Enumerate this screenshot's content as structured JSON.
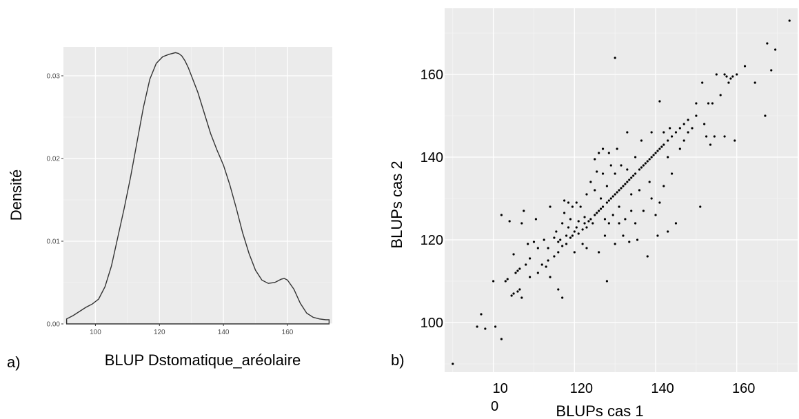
{
  "chart_data": [
    {
      "panel_label": "a)",
      "type": "area",
      "title": "",
      "xlabel": "BLUP Dstomatique_aréolaire",
      "ylabel": "Densité",
      "xlim": [
        90,
        174
      ],
      "ylim": [
        0,
        0.0335
      ],
      "x_ticks": [
        100,
        120,
        140,
        160
      ],
      "y_ticks": [
        0.0,
        0.01,
        0.02,
        0.03
      ],
      "y_tick_labels": [
        "0.00",
        "0.01",
        "0.02",
        "0.03"
      ],
      "grid": true,
      "series": [
        {
          "x": [
            91,
            93,
            95,
            97,
            99,
            101,
            103,
            105,
            107,
            109,
            111,
            113,
            115,
            117,
            119,
            121,
            123,
            125,
            126,
            127,
            128,
            129,
            130,
            132,
            134,
            136,
            138,
            140,
            142,
            144,
            146,
            148,
            150,
            152,
            154,
            156,
            158,
            159,
            160,
            162,
            164,
            166,
            168,
            170,
            172,
            173
          ],
          "y": [
            0.0006,
            0.001,
            0.0015,
            0.002,
            0.0024,
            0.003,
            0.0045,
            0.007,
            0.0105,
            0.014,
            0.0178,
            0.022,
            0.0262,
            0.0296,
            0.0315,
            0.0323,
            0.0326,
            0.0328,
            0.0327,
            0.0324,
            0.0318,
            0.031,
            0.03,
            0.028,
            0.0255,
            0.023,
            0.021,
            0.0192,
            0.0168,
            0.014,
            0.011,
            0.0085,
            0.0065,
            0.0053,
            0.0049,
            0.005,
            0.0054,
            0.0055,
            0.0053,
            0.0042,
            0.0025,
            0.0013,
            0.0008,
            0.0006,
            0.0005,
            0.0005
          ]
        }
      ]
    },
    {
      "panel_label": "b)",
      "type": "scatter",
      "title": "",
      "xlabel": "BLUPs cas 1",
      "ylabel": "BLUPs cas 2",
      "xlim": [
        88,
        175
      ],
      "ylim": [
        88,
        176
      ],
      "x_ticks": [
        100,
        120,
        140,
        160
      ],
      "x_tick_labels": [
        "10\n0",
        "120",
        "140",
        "160"
      ],
      "y_ticks": [
        100,
        120,
        140,
        160
      ],
      "y_tick_labels": [
        "100",
        "120",
        "140",
        "160"
      ],
      "grid": true,
      "series": [
        {
          "points": [
            [
              90,
              90
            ],
            [
              96,
              99
            ],
            [
              97,
              102
            ],
            [
              98,
              98.5
            ],
            [
              100,
              110
            ],
            [
              100.5,
              99
            ],
            [
              102,
              96
            ],
            [
              102,
              126
            ],
            [
              103,
              110
            ],
            [
              103.5,
              110.5
            ],
            [
              104,
              124.5
            ],
            [
              104.5,
              106.5
            ],
            [
              105,
              107
            ],
            [
              105.5,
              112
            ],
            [
              105,
              116.5
            ],
            [
              106,
              107.5
            ],
            [
              106,
              112.5
            ],
            [
              106.5,
              108
            ],
            [
              106.5,
              113
            ],
            [
              107,
              106
            ],
            [
              107,
              124
            ],
            [
              107.5,
              127
            ],
            [
              108,
              114
            ],
            [
              108.5,
              119
            ],
            [
              109,
              115.5
            ],
            [
              109,
              111
            ],
            [
              110,
              119.5
            ],
            [
              110.5,
              125
            ],
            [
              111,
              112
            ],
            [
              111,
              118
            ],
            [
              112,
              114
            ],
            [
              112.5,
              120
            ],
            [
              113,
              113.5
            ],
            [
              113.5,
              115
            ],
            [
              113.5,
              118
            ],
            [
              114,
              111
            ],
            [
              114,
              128
            ],
            [
              115,
              116
            ],
            [
              115,
              120.5
            ],
            [
              115.5,
              122
            ],
            [
              116,
              108
            ],
            [
              116,
              117
            ],
            [
              116,
              119.5
            ],
            [
              116.5,
              120
            ],
            [
              117,
              106
            ],
            [
              117,
              118.5
            ],
            [
              117,
              124
            ],
            [
              117.5,
              129.5
            ],
            [
              117.5,
              126.5
            ],
            [
              118,
              119
            ],
            [
              118,
              121
            ],
            [
              118.5,
              129
            ],
            [
              118.5,
              123
            ],
            [
              119,
              120.5
            ],
            [
              119,
              125
            ],
            [
              119.5,
              121
            ],
            [
              119.5,
              128
            ],
            [
              120,
              122
            ],
            [
              120,
              117
            ],
            [
              120.5,
              123
            ],
            [
              120.5,
              129
            ],
            [
              121,
              121.5
            ],
            [
              121,
              124.5
            ],
            [
              121.5,
              128
            ],
            [
              122,
              122.5
            ],
            [
              122,
              119
            ],
            [
              122.5,
              124
            ],
            [
              122.5,
              125.5
            ],
            [
              123,
              123
            ],
            [
              123,
              131
            ],
            [
              123,
              118
            ],
            [
              123.5,
              124.5
            ],
            [
              124,
              125
            ],
            [
              124,
              134
            ],
            [
              124.5,
              124
            ],
            [
              125,
              126
            ],
            [
              125,
              139.5
            ],
            [
              125,
              132
            ],
            [
              125.5,
              136.5
            ],
            [
              125.5,
              126.5
            ],
            [
              126,
              127
            ],
            [
              126,
              117
            ],
            [
              126,
              141
            ],
            [
              126.5,
              127.5
            ],
            [
              126.5,
              130
            ],
            [
              127,
              128
            ],
            [
              127,
              142
            ],
            [
              127,
              136
            ],
            [
              127.5,
              125
            ],
            [
              127.5,
              121
            ],
            [
              128,
              129
            ],
            [
              128,
              133
            ],
            [
              128,
              110
            ],
            [
              128.5,
              129.5
            ],
            [
              128.5,
              141
            ],
            [
              128.5,
              124
            ],
            [
              129,
              130
            ],
            [
              129,
              138
            ],
            [
              129.5,
              130.5
            ],
            [
              129.5,
              126
            ],
            [
              130,
              131
            ],
            [
              130,
              136
            ],
            [
              130,
              164
            ],
            [
              130,
              119
            ],
            [
              130.5,
              131.5
            ],
            [
              130.5,
              142
            ],
            [
              131,
              132
            ],
            [
              131,
              128
            ],
            [
              131,
              124
            ],
            [
              131.5,
              132.5
            ],
            [
              131.5,
              138
            ],
            [
              132,
              133
            ],
            [
              132,
              121
            ],
            [
              132.5,
              133.5
            ],
            [
              132.5,
              125
            ],
            [
              133,
              134
            ],
            [
              133,
              137
            ],
            [
              133,
              146
            ],
            [
              133.5,
              134.5
            ],
            [
              133.5,
              119.5
            ],
            [
              134,
              135
            ],
            [
              134,
              127
            ],
            [
              134,
              131
            ],
            [
              134.5,
              135.5
            ],
            [
              135,
              136
            ],
            [
              135,
              140
            ],
            [
              135,
              124
            ],
            [
              135.5,
              120
            ],
            [
              136,
              137
            ],
            [
              136,
              132
            ],
            [
              136.5,
              137.5
            ],
            [
              136.5,
              144
            ],
            [
              137,
              138
            ],
            [
              137,
              127
            ],
            [
              137.5,
              138.5
            ],
            [
              138,
              139
            ],
            [
              138,
              116
            ],
            [
              138.5,
              139.5
            ],
            [
              138.5,
              134
            ],
            [
              139,
              140
            ],
            [
              139,
              146
            ],
            [
              139,
              130
            ],
            [
              139.5,
              140.5
            ],
            [
              140,
              141
            ],
            [
              140,
              126
            ],
            [
              140.5,
              141.5
            ],
            [
              140.5,
              121
            ],
            [
              141,
              142
            ],
            [
              141,
              153.5
            ],
            [
              141,
              129
            ],
            [
              141.5,
              142.5
            ],
            [
              142,
              143
            ],
            [
              142,
              146
            ],
            [
              142,
              133
            ],
            [
              143,
              144
            ],
            [
              143,
              140
            ],
            [
              143,
              122
            ],
            [
              143.5,
              147
            ],
            [
              144,
              145
            ],
            [
              144,
              136
            ],
            [
              145,
              146
            ],
            [
              145,
              124
            ],
            [
              146,
              147
            ],
            [
              146,
              142
            ],
            [
              147,
              148
            ],
            [
              147,
              144
            ],
            [
              148,
              149
            ],
            [
              148,
              146
            ],
            [
              149,
              147
            ],
            [
              150,
              150
            ],
            [
              150,
              153
            ],
            [
              151,
              128
            ],
            [
              151.5,
              158
            ],
            [
              152,
              148
            ],
            [
              152.5,
              145
            ],
            [
              153,
              153
            ],
            [
              153.5,
              143
            ],
            [
              154,
              153
            ],
            [
              154.5,
              145
            ],
            [
              155,
              160
            ],
            [
              156,
              155
            ],
            [
              157,
              160
            ],
            [
              157.5,
              159.5
            ],
            [
              158,
              158
            ],
            [
              158.5,
              159
            ],
            [
              159,
              159.5
            ],
            [
              159.5,
              144
            ],
            [
              160,
              160
            ],
            [
              162,
              162
            ],
            [
              164.5,
              158
            ],
            [
              167,
              150
            ],
            [
              167.5,
              167.5
            ],
            [
              168.5,
              161
            ],
            [
              169.5,
              166
            ],
            [
              173,
              173
            ],
            [
              157,
              145
            ]
          ]
        }
      ]
    }
  ]
}
